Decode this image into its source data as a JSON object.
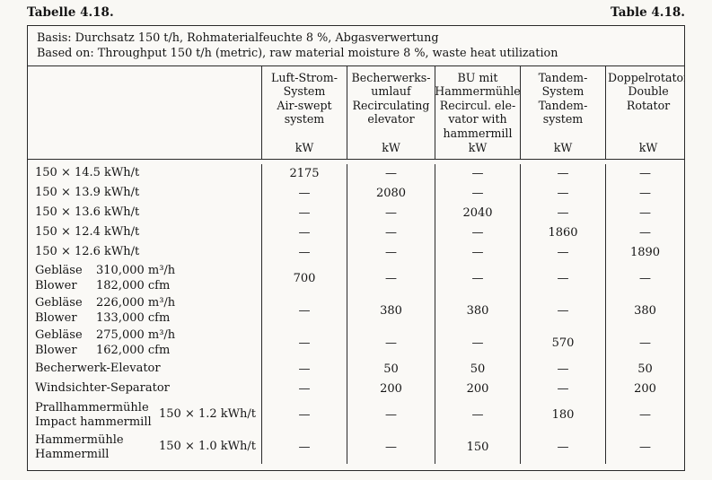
{
  "page": {
    "title_left": "Tabelle 4.18.",
    "title_right": "Table 4.18."
  },
  "colors": {
    "paper": "#f9f8f4",
    "ink": "#141414",
    "line": "#2a2a2a"
  },
  "basis": {
    "de": "Basis: Durchsatz 150 t/h, Rohmaterialfeuchte 8 %, Abgasverwertung",
    "en": "Based on: Throughput 150 t/h (metric), raw material moisture 8 %, waste heat utilization"
  },
  "columns": [
    {
      "de": "Luft-Strom-\nSystem",
      "en": "Air-swept\nsystem",
      "unit": "kW"
    },
    {
      "de": "Becherwerks-\numlauf",
      "en": "Recirculating\nelevator",
      "unit": "kW"
    },
    {
      "de": "BU mit\nHammermühle",
      "en": "Recircul. ele-\nvator with\nhammermill",
      "unit": "kW"
    },
    {
      "de": "Tandem-System",
      "en": "Tandem-system",
      "unit": "kW"
    },
    {
      "de": "Doppelrotator",
      "en": "Double Rotator",
      "unit": "kW"
    }
  ],
  "rows": [
    {
      "label": "150 × 14.5 kWh/t",
      "values": [
        "2175",
        "—",
        "—",
        "—",
        "—"
      ]
    },
    {
      "label": "150 × 13.9 kWh/t",
      "values": [
        "—",
        "2080",
        "—",
        "—",
        "—"
      ]
    },
    {
      "label": "150 × 13.6 kWh/t",
      "values": [
        "—",
        "—",
        "2040",
        "—",
        "—"
      ]
    },
    {
      "label": "150 × 12.4 kWh/t",
      "values": [
        "—",
        "—",
        "—",
        "1860",
        "—"
      ]
    },
    {
      "label": "150 × 12.6 kWh/t",
      "values": [
        "—",
        "—",
        "—",
        "—",
        "1890"
      ]
    },
    {
      "label_l1": "Gebläse",
      "spec_l1": "310,000 m³/h",
      "label_l2": "Blower",
      "spec_l2": "182,000 cfm",
      "values": [
        "700",
        "—",
        "—",
        "—",
        "—"
      ]
    },
    {
      "label_l1": "Gebläse",
      "spec_l1": "226,000 m³/h",
      "label_l2": "Blower",
      "spec_l2": "133,000 cfm",
      "values": [
        "—",
        "380",
        "380",
        "—",
        "380"
      ]
    },
    {
      "label_l1": "Gebläse",
      "spec_l1": "275,000 m³/h",
      "label_l2": "Blower",
      "spec_l2": "162,000 cfm",
      "values": [
        "—",
        "—",
        "—",
        "570",
        "—"
      ]
    },
    {
      "label": "Becherwerk-Elevator",
      "values": [
        "—",
        "50",
        "50",
        "—",
        "50"
      ]
    },
    {
      "label": "Windsichter-Separator",
      "values": [
        "—",
        "200",
        "200",
        "—",
        "200"
      ]
    },
    {
      "label_l1": "Prallhammermühle",
      "label_l2": "Impact hammermill",
      "spec_mid": "150 × 1.2 kWh/t",
      "values": [
        "—",
        "—",
        "—",
        "180",
        "—"
      ]
    },
    {
      "label_l1": "Hammermühle",
      "label_l2": "Hammermill",
      "spec_mid": "150 × 1.0 kWh/t",
      "values": [
        "—",
        "—",
        "150",
        "—",
        "—"
      ]
    }
  ]
}
